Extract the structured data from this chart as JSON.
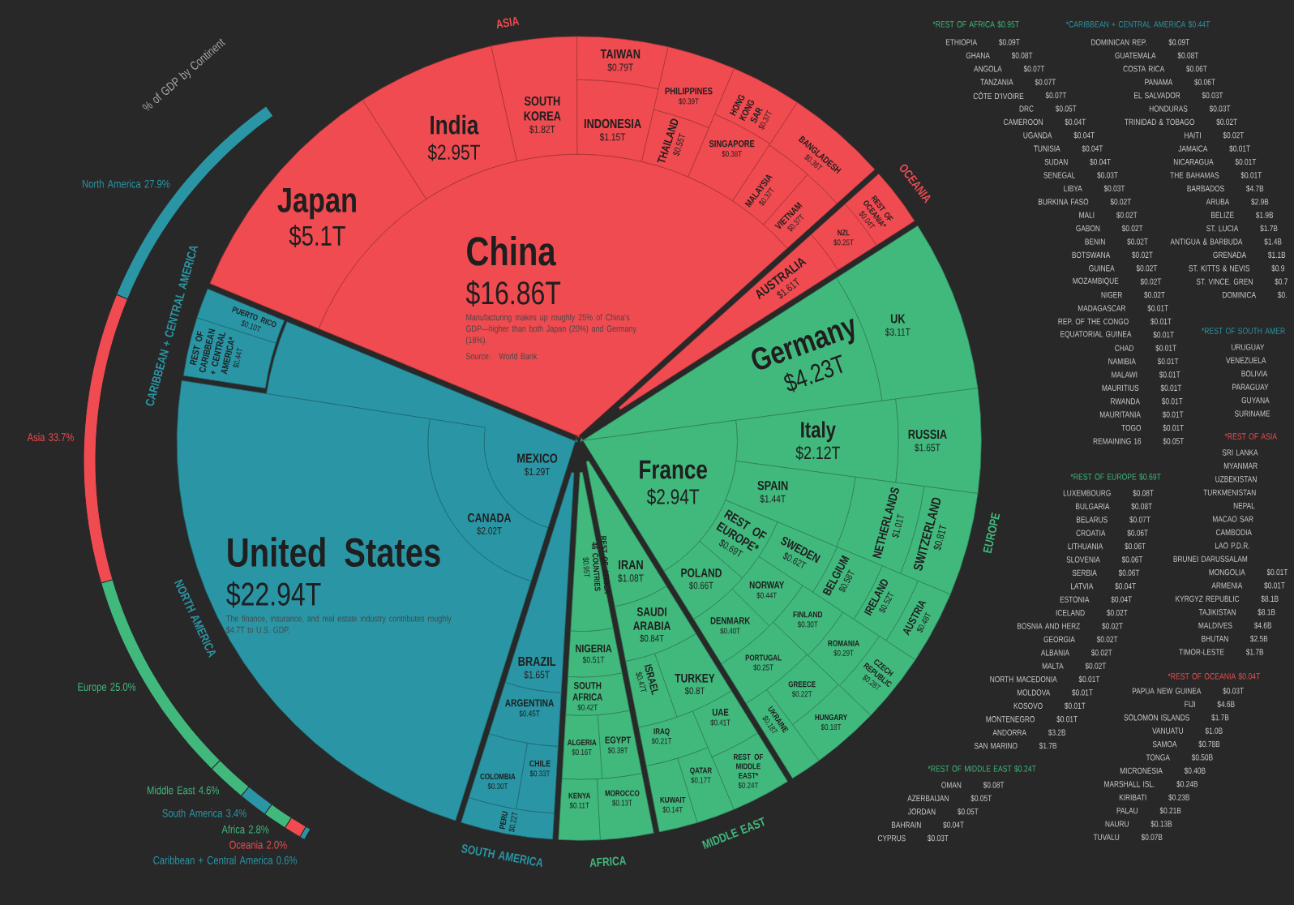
{
  "chart_data": [
    {
      "type": "donut",
      "title": "% of GDP by Continent",
      "categories": [
        "North America",
        "Asia",
        "Europe",
        "Middle East",
        "South America",
        "Africa",
        "Oceania",
        "Caribbean + Central America"
      ],
      "values": [
        27.9,
        33.7,
        25.0,
        4.6,
        3.4,
        2.8,
        2.0,
        0.6
      ],
      "colors": [
        "#2a96a5",
        "#f04b50",
        "#41b97d",
        "#41b97d",
        "#2a96a5",
        "#41b97d",
        "#f04b50",
        "#2a96a5"
      ],
      "value_labels": [
        "27.9%",
        "33.7%",
        "25.0%",
        "4.6%",
        "3.4%",
        "2.8%",
        "2.0%",
        "0.6%"
      ]
    },
    {
      "type": "other",
      "title": "ASIA",
      "color": "#f04b50",
      "categories": [
        "China",
        "Japan",
        "India",
        "SOUTH KOREA",
        "INDONESIA",
        "TAIWAN",
        "THAILAND",
        "PHILIPPINES",
        "SINGAPORE",
        "HONG KONG SAR",
        "MALAYSIA",
        "VIETNAM",
        "BANGLADESH"
      ],
      "values": [
        16.86,
        5.1,
        2.95,
        1.82,
        1.15,
        0.79,
        0.55,
        0.39,
        0.38,
        0.37,
        0.37,
        0.37,
        0.36
      ],
      "value_labels": [
        "$16.86T",
        "$5.1T",
        "$2.95T",
        "$1.82T",
        "$1.15T",
        "$0.79T",
        "$0.55T",
        "$0.39T",
        "$0.38T",
        "$0.37T",
        "$0.37T",
        "$0.37T",
        "$0.36T"
      ],
      "annotations": [
        "Manufacturing makes up roughly 25% of China's GDP—higher than both Japan (20%) and Germany (18%).",
        "Source: World Bank"
      ]
    },
    {
      "type": "other",
      "title": "OCEANIA",
      "color": "#f04b50",
      "categories": [
        "AUSTRALIA",
        "NZL",
        "REST OF OCEANIA*"
      ],
      "values": [
        1.61,
        0.25,
        0.04
      ],
      "value_labels": [
        "$1.61T",
        "$0.25T",
        "$0.04T"
      ]
    },
    {
      "type": "other",
      "title": "EUROPE",
      "color": "#41b97d",
      "categories": [
        "Germany",
        "UK",
        "France",
        "Italy",
        "RUSSIA",
        "SPAIN",
        "NETHERLANDS",
        "SWITZERLAND",
        "REST OF EUROPE*",
        "POLAND",
        "SWEDEN",
        "BELGIUM",
        "IRELAND",
        "AUSTRIA",
        "NORWAY",
        "DENMARK",
        "FINLAND",
        "ROMANIA",
        "CZECH REPUBLIC",
        "PORTUGAL",
        "GREECE",
        "HUNGARY",
        "UKRAINE"
      ],
      "values": [
        4.23,
        3.11,
        2.94,
        2.12,
        1.65,
        1.44,
        1.01,
        0.81,
        0.69,
        0.66,
        0.62,
        0.58,
        0.52,
        0.48,
        0.44,
        0.4,
        0.3,
        0.29,
        0.28,
        0.25,
        0.22,
        0.18,
        0.18
      ],
      "value_labels": [
        "$4.23T",
        "$3.11T",
        "$2.94T",
        "$2.12T",
        "$1.65T",
        "$1.44T",
        "$1.01T",
        "$0.81T",
        "$0.69T",
        "$0.66T",
        "$0.62T",
        "$0.58T",
        "$0.52T",
        "$0.48T",
        "$0.44T",
        "$0.40T",
        "$0.30T",
        "$0.29T",
        "$0.28T",
        "$0.25T",
        "$0.22T",
        "$0.18T",
        "$0.18T"
      ]
    },
    {
      "type": "other",
      "title": "MIDDLE EAST",
      "color": "#41b97d",
      "categories": [
        "IRAN",
        "SAUDI ARABIA",
        "TURKEY",
        "ISRAEL",
        "UAE",
        "REST OF MIDDLE EAST*",
        "IRAQ",
        "QATAR",
        "KUWAIT"
      ],
      "values": [
        1.08,
        0.84,
        0.8,
        0.47,
        0.41,
        0.24,
        0.21,
        0.17,
        0.14
      ],
      "value_labels": [
        "$1.08T",
        "$0.84T",
        "$0.8T",
        "$0.47T",
        "$0.41T",
        "$0.24T",
        "$0.21T",
        "$0.17T",
        "$0.14T"
      ]
    },
    {
      "type": "other",
      "title": "AFRICA",
      "color": "#41b97d",
      "categories": [
        "REST OF AFRICA* 46 COUNTRIES",
        "NIGERIA",
        "SOUTH AFRICA",
        "EGYPT",
        "ALGERIA",
        "MOROCCO",
        "KENYA"
      ],
      "values": [
        0.95,
        0.51,
        0.42,
        0.39,
        0.16,
        0.13,
        0.11
      ],
      "value_labels": [
        "$0.95T",
        "$0.51T",
        "$0.42T",
        "$0.39T",
        "$0.16T",
        "$0.13T",
        "$0.11T"
      ]
    },
    {
      "type": "other",
      "title": "SOUTH AMERICA",
      "color": "#2a96a5",
      "categories": [
        "BRAZIL",
        "ARGENTINA",
        "CHILE",
        "COLOMBIA",
        "PERU"
      ],
      "values": [
        1.65,
        0.45,
        0.33,
        0.3,
        0.22
      ],
      "value_labels": [
        "$1.65T",
        "$0.45T",
        "$0.33T",
        "$0.30T",
        "$0.22T"
      ]
    },
    {
      "type": "other",
      "title": "NORTH AMERICA",
      "color": "#2a96a5",
      "categories": [
        "MEXICO",
        "CANADA",
        "United States"
      ],
      "values": [
        1.29,
        2.02,
        22.94
      ],
      "value_labels": [
        "$1.29T",
        "$2.02T",
        "$22.94T"
      ],
      "annotations": [
        "The finance, insurance, and real estate industry contributes roughly $4.7T to U.S. GDP."
      ]
    },
    {
      "type": "other",
      "title": "CARIBBEAN + CENTRAL AMERICA",
      "color": "#2a96a5",
      "categories": [
        "REST OF CARIBBEAN + CENTRAL AMERICA*",
        "PUERTO RICO"
      ],
      "values": [
        0.44,
        0.1
      ],
      "value_labels": [
        "$0.44T",
        "$0.10T"
      ]
    },
    {
      "type": "other",
      "title": "*REST OF AFRICA $0.95T",
      "color": "#41b97d",
      "categories": [
        "ETHIOPIA",
        "GHANA",
        "ANGOLA",
        "TANZANIA",
        "CÔTE D'IVOIRE",
        "DRC",
        "CAMEROON",
        "UGANDA",
        "TUNISIA",
        "SUDAN",
        "SENEGAL",
        "LIBYA",
        "BURKINA FASO",
        "MALI",
        "GABON",
        "BENIN",
        "BOTSWANA",
        "GUINEA",
        "MOZAMBIQUE",
        "NIGER",
        "MADAGASCAR",
        "REP. OF THE CONGO",
        "EQUATORIAL GUINEA",
        "CHAD",
        "NAMIBIA",
        "MALAWI",
        "MAURITIUS",
        "RWANDA",
        "MAURITANIA",
        "TOGO",
        "REMAINING 16"
      ],
      "value_labels": [
        "$0.09T",
        "$0.08T",
        "$0.07T",
        "$0.07T",
        "$0.07T",
        "$0.05T",
        "$0.04T",
        "$0.04T",
        "$0.04T",
        "$0.04T",
        "$0.03T",
        "$0.03T",
        "$0.02T",
        "$0.02T",
        "$0.02T",
        "$0.02T",
        "$0.02T",
        "$0.02T",
        "$0.02T",
        "$0.02T",
        "$0.01T",
        "$0.01T",
        "$0.01T",
        "$0.01T",
        "$0.01T",
        "$0.01T",
        "$0.01T",
        "$0.01T",
        "$0.01T",
        "$0.01T",
        "$0.05T"
      ]
    },
    {
      "type": "other",
      "title": "*CARIBBEAN + CENTRAL AMERICA $0.44T",
      "color": "#2a96a5",
      "categories": [
        "DOMINICAN REP.",
        "GUATEMALA",
        "COSTA RICA",
        "PANAMA",
        "EL SALVADOR",
        "HONDURAS",
        "TRINIDAD & TOBAGO",
        "HAITI",
        "JAMAICA",
        "NICARAGUA",
        "THE BAHAMAS",
        "BARBADOS",
        "ARUBA",
        "BELIZE",
        "ST. LUCIA",
        "ANTIGUA & BARBUDA",
        "GRENADA",
        "ST. KITTS & NEVIS",
        "ST. VINCE. GREN",
        "DOMINICA"
      ],
      "value_labels": [
        "$0.09T",
        "$0.08T",
        "$0.06T",
        "$0.06T",
        "$0.03T",
        "$0.03T",
        "$0.02T",
        "$0.02T",
        "$0.01T",
        "$0.01T",
        "$0.01T",
        "$4.7B",
        "$2.9B",
        "$1.9B",
        "$1.7B",
        "$1.4B",
        "$1.1B",
        "$0.9",
        "$0.7",
        "$0."
      ]
    },
    {
      "type": "other",
      "title": "*REST OF SOUTH AMER",
      "color": "#2a96a5",
      "categories": [
        "URUGUAY",
        "VENEZUELA",
        "BOLIVIA",
        "PARAGUAY",
        "GUYANA",
        "SURINAME"
      ]
    },
    {
      "type": "other",
      "title": "*REST OF ASIA",
      "color": "#f04b50",
      "categories": [
        "SRI LANKA",
        "MYANMAR",
        "UZBEKISTAN",
        "TURKMENISTAN",
        "NEPAL",
        "MACAO SAR",
        "CAMBODIA",
        "LAO P.D.R.",
        "BRUNEI DARUSSALAM",
        "MONGOLIA",
        "ARMENIA",
        "KYRGYZ REPUBLIC",
        "TAJIKISTAN",
        "MALDIVES",
        "BHUTAN",
        "TIMOR-LESTE"
      ],
      "value_labels": [
        null,
        null,
        null,
        null,
        null,
        null,
        null,
        null,
        null,
        "$0.01T",
        "$0.01T",
        "$8.1B",
        "$8.1B",
        "$4.6B",
        "$2.5B",
        "$1.7B"
      ]
    },
    {
      "type": "other",
      "title": "*REST OF EUROPE $0.69T",
      "color": "#41b97d",
      "categories": [
        "LUXEMBOURG",
        "BULGARIA",
        "BELARUS",
        "CROATIA",
        "LITHUANIA",
        "SLOVENIA",
        "SERBIA",
        "LATVIA",
        "ESTONIA",
        "ICELAND",
        "BOSNIA AND HERZ",
        "GEORGIA",
        "ALBANIA",
        "MALTA",
        "NORTH MACEDONIA",
        "MOLDOVA",
        "KOSOVO",
        "MONTENEGRO",
        "ANDORRA",
        "SAN MARINO"
      ],
      "value_labels": [
        "$0.08T",
        "$0.08T",
        "$0.07T",
        "$0.06T",
        "$0.06T",
        "$0.06T",
        "$0.06T",
        "$0.04T",
        "$0.04T",
        "$0.02T",
        "$0.02T",
        "$0.02T",
        "$0.02T",
        "$0.02T",
        "$0.01T",
        "$0.01T",
        "$0.01T",
        "$0.01T",
        "$3.2B",
        "$1.7B"
      ]
    },
    {
      "type": "other",
      "title": "*REST OF OCEANIA $0.04T",
      "color": "#f04b50",
      "categories": [
        "PAPUA NEW GUINEA",
        "FIJI",
        "SOLOMON ISLANDS",
        "VANUATU",
        "SAMOA",
        "TONGA",
        "MICRONESIA",
        "MARSHALL ISL.",
        "KIRIBATI",
        "PALAU",
        "NAURU",
        "TUVALU"
      ],
      "value_labels": [
        "$0.03T",
        "$4.6B",
        "$1.7B",
        "$1.0B",
        "$0.78B",
        "$0.50B",
        "$0.40B",
        "$0.24B",
        "$0.23B",
        "$0.21B",
        "$0.13B",
        "$0.07B"
      ]
    },
    {
      "type": "other",
      "title": "*REST OF MIDDLE EAST $0.24T",
      "color": "#41b97d",
      "categories": [
        "OMAN",
        "AZERBAIJAN",
        "JORDAN",
        "BAHRAIN",
        "CYPRUS"
      ],
      "value_labels": [
        "$0.08T",
        "$0.05T",
        "$0.05T",
        "$0.04T",
        "$0.03T"
      ]
    }
  ]
}
